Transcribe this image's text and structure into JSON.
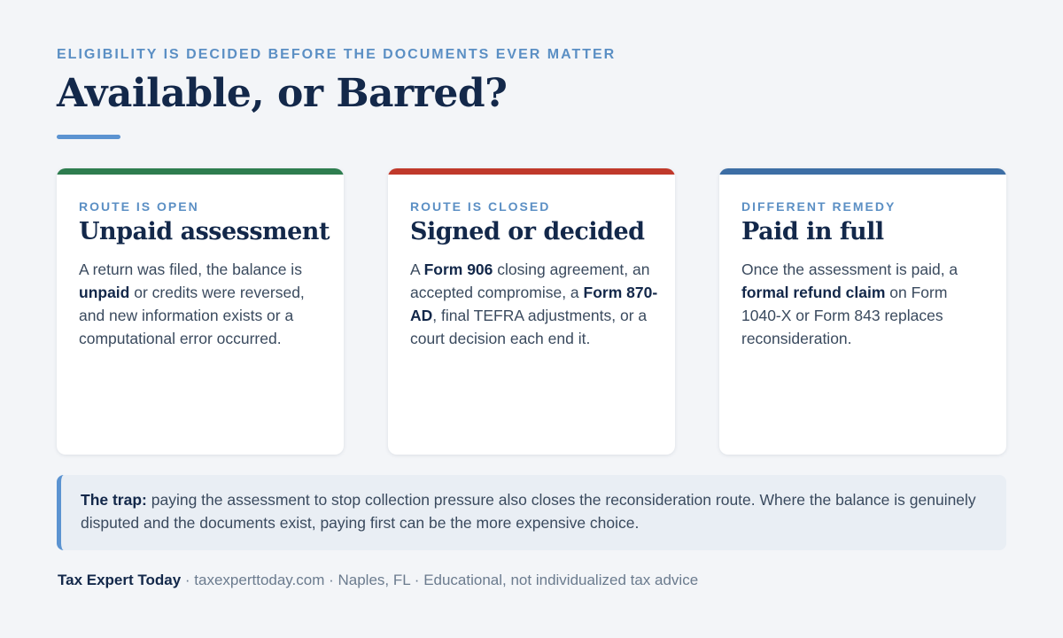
{
  "header": {
    "eyebrow": "ELIGIBILITY IS DECIDED BEFORE THE DOCUMENTS EVER MATTER",
    "title": "Available, or Barred?"
  },
  "cards": [
    {
      "accent": "#2e7d4f",
      "kicker": "ROUTE IS OPEN",
      "heading": "Unpaid assessment",
      "body": [
        {
          "t": "A return was filed, the balance is ",
          "b": false
        },
        {
          "t": "unpaid",
          "b": true
        },
        {
          "t": " or credits were reversed, and new information exists or a computational error occurred.",
          "b": false
        }
      ]
    },
    {
      "accent": "#c0392b",
      "kicker": "ROUTE IS CLOSED",
      "heading": "Signed or decided",
      "body": [
        {
          "t": "A ",
          "b": false
        },
        {
          "t": "Form 906",
          "b": true
        },
        {
          "t": " closing agreement, an accepted compromise, a ",
          "b": false
        },
        {
          "t": "Form 870-AD",
          "b": true
        },
        {
          "t": ", final TEFRA adjustments, or a court decision each end it.",
          "b": false
        }
      ]
    },
    {
      "accent": "#3d6ea5",
      "kicker": "DIFFERENT REMEDY",
      "heading": "Paid in full",
      "body": [
        {
          "t": "Once the assessment is paid, a ",
          "b": false
        },
        {
          "t": "formal refund claim",
          "b": true
        },
        {
          "t": " on Form 1040-X or Form 843 replaces reconsideration.",
          "b": false
        }
      ]
    }
  ],
  "trap": {
    "label": "The trap:",
    "text": " paying the assessment to stop collection pressure also closes the reconsideration route. Where the balance is genuinely disputed and the documents exist, paying first can be the more expensive choice."
  },
  "footer": {
    "brand": "Tax Expert Today",
    "site": "taxexperttoday.com",
    "location": "Naples, FL",
    "disclaimer": "Educational, not individualized tax advice",
    "separator": " · "
  },
  "colors": {
    "background": "#f3f5f8",
    "navy": "#13284a",
    "accent_blue": "#5b93d1",
    "kicker_blue": "#5b8fc4"
  }
}
